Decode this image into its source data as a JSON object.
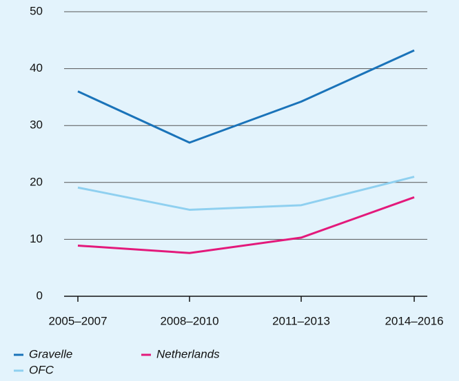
{
  "chart_data": {
    "type": "line",
    "categories": [
      "2005–2007",
      "2008–2010",
      "2011–2013",
      "2014–2016"
    ],
    "series": [
      {
        "name": "Gravelle",
        "color": "#1a73b9",
        "values": [
          36,
          27,
          34.2,
          43.2
        ]
      },
      {
        "name": "OFC",
        "color": "#8fd0f0",
        "values": [
          19.1,
          15.2,
          16,
          21
        ]
      },
      {
        "name": "Netherlands",
        "color": "#e3197b",
        "values": [
          8.9,
          7.6,
          10.3,
          17.4
        ]
      }
    ],
    "ylim": [
      0,
      50
    ],
    "yticks": [
      0,
      10,
      20,
      30,
      40,
      50
    ],
    "grid": true
  }
}
